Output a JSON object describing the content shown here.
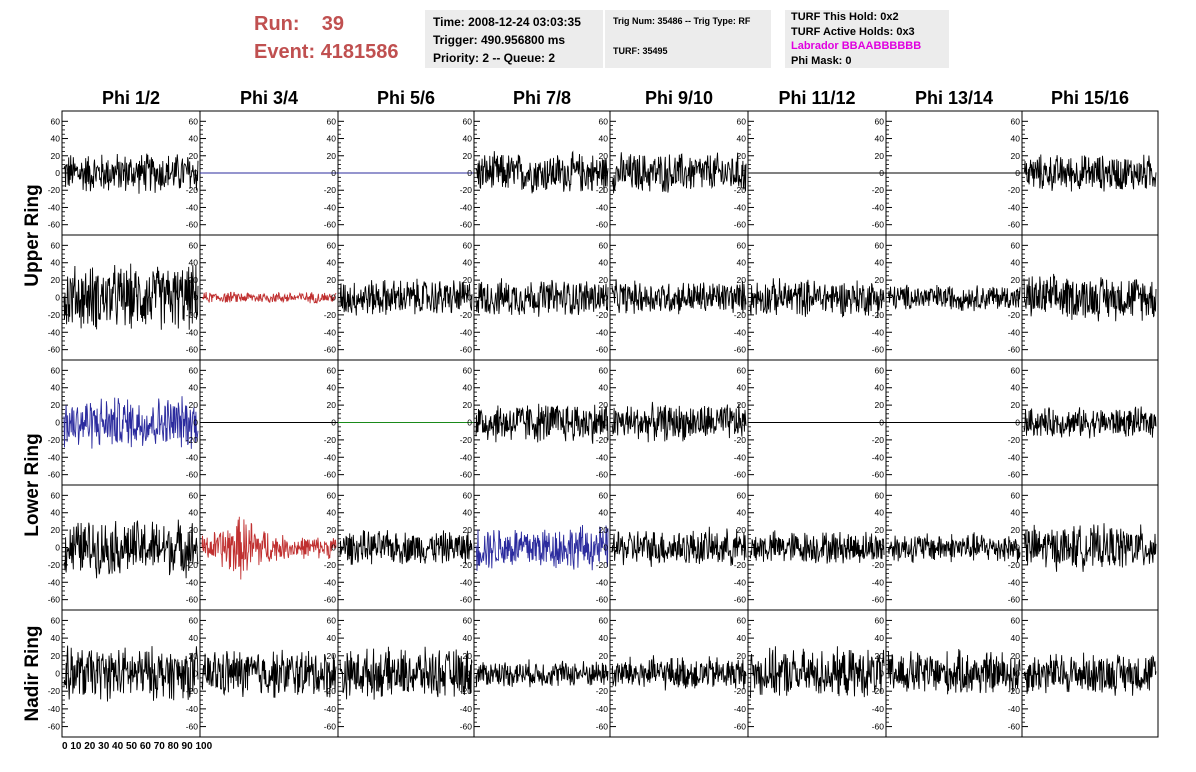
{
  "header": {
    "run_label": "Run:",
    "run_value": "39",
    "event_label": "Event:",
    "event_value": "4181586"
  },
  "info_box_1": {
    "time": "Time: 2008-12-24 03:03:35",
    "trigger": "Trigger: 490.956800 ms",
    "priority": "Priority: 2 -- Queue: 2"
  },
  "info_box_2": {
    "trig": "Trig Num: 35486 -- Trig Type: RF",
    "turf": "TURF: 35495"
  },
  "info_box_3": {
    "this_hold": "TURF This Hold: 0x2",
    "active_holds": "TURF Active Holds: 0x3",
    "labrador": "Labrador BBAABBBBBB",
    "phi_mask": "Phi Mask: 0"
  },
  "colors": {
    "labrador": "#e000e0",
    "run_text": "#c05050",
    "black": "#000000",
    "blue": "#2b2b9e",
    "red": "#c03030",
    "green": "#1a8a1a"
  },
  "chart_data": {
    "type": "line",
    "columns": [
      "Phi 1/2",
      "Phi 3/4",
      "Phi 5/6",
      "Phi 7/8",
      "Phi 9/10",
      "Phi 11/12",
      "Phi 13/14",
      "Phi 15/16"
    ],
    "ring_labels": [
      "Upper Ring",
      "Lower Ring",
      "Nadir Ring"
    ],
    "y_ticks": [
      "60",
      "40",
      "20",
      "0",
      "-20",
      "-40",
      "-60"
    ],
    "x_tick_label_strip": "0  10 20 30 40 50 60 70 80 90 100",
    "ylim": [
      -65,
      65
    ],
    "xlim": [
      0,
      100
    ],
    "grid": false,
    "panels": [
      [
        {
          "color": "black",
          "amp": 22,
          "flat": false
        },
        {
          "color": "blue",
          "amp": 0,
          "flat": true
        },
        {
          "color": "blue",
          "amp": 0,
          "flat": true
        },
        {
          "color": "black",
          "amp": 22,
          "flat": false
        },
        {
          "color": "black",
          "amp": 22,
          "flat": false
        },
        {
          "color": "black",
          "amp": 0,
          "flat": true
        },
        {
          "color": "black",
          "amp": 0,
          "flat": true
        },
        {
          "color": "black",
          "amp": 20,
          "flat": false
        }
      ],
      [
        {
          "color": "black",
          "amp": 35,
          "flat": false
        },
        {
          "color": "red",
          "amp": 6,
          "flat": false
        },
        {
          "color": "black",
          "amp": 20,
          "flat": false
        },
        {
          "color": "black",
          "amp": 20,
          "flat": false
        },
        {
          "color": "black",
          "amp": 18,
          "flat": false
        },
        {
          "color": "black",
          "amp": 20,
          "flat": false
        },
        {
          "color": "black",
          "amp": 14,
          "flat": false
        },
        {
          "color": "black",
          "amp": 24,
          "flat": false
        }
      ],
      [
        {
          "color": "blue",
          "amp": 28,
          "flat": false
        },
        {
          "color": "black",
          "amp": 0,
          "flat": true
        },
        {
          "color": "green",
          "amp": 0,
          "flat": true
        },
        {
          "color": "black",
          "amp": 22,
          "flat": false
        },
        {
          "color": "black",
          "amp": 20,
          "flat": false
        },
        {
          "color": "black",
          "amp": 0,
          "flat": true
        },
        {
          "color": "black",
          "amp": 0,
          "flat": true
        },
        {
          "color": "black",
          "amp": 16,
          "flat": false
        }
      ],
      [
        {
          "color": "black",
          "amp": 30,
          "flat": false
        },
        {
          "color": "red",
          "amp": 34,
          "flat": false
        },
        {
          "color": "black",
          "amp": 18,
          "flat": false
        },
        {
          "color": "blue",
          "amp": 24,
          "flat": false
        },
        {
          "color": "black",
          "amp": 20,
          "flat": false
        },
        {
          "color": "black",
          "amp": 18,
          "flat": false
        },
        {
          "color": "black",
          "amp": 16,
          "flat": false
        },
        {
          "color": "black",
          "amp": 24,
          "flat": false
        }
      ],
      [
        {
          "color": "black",
          "amp": 28,
          "flat": false
        },
        {
          "color": "black",
          "amp": 26,
          "flat": false
        },
        {
          "color": "black",
          "amp": 26,
          "flat": false
        },
        {
          "color": "black",
          "amp": 14,
          "flat": false
        },
        {
          "color": "black",
          "amp": 18,
          "flat": false
        },
        {
          "color": "black",
          "amp": 26,
          "flat": false
        },
        {
          "color": "black",
          "amp": 24,
          "flat": false
        },
        {
          "color": "black",
          "amp": 22,
          "flat": false
        }
      ]
    ]
  }
}
